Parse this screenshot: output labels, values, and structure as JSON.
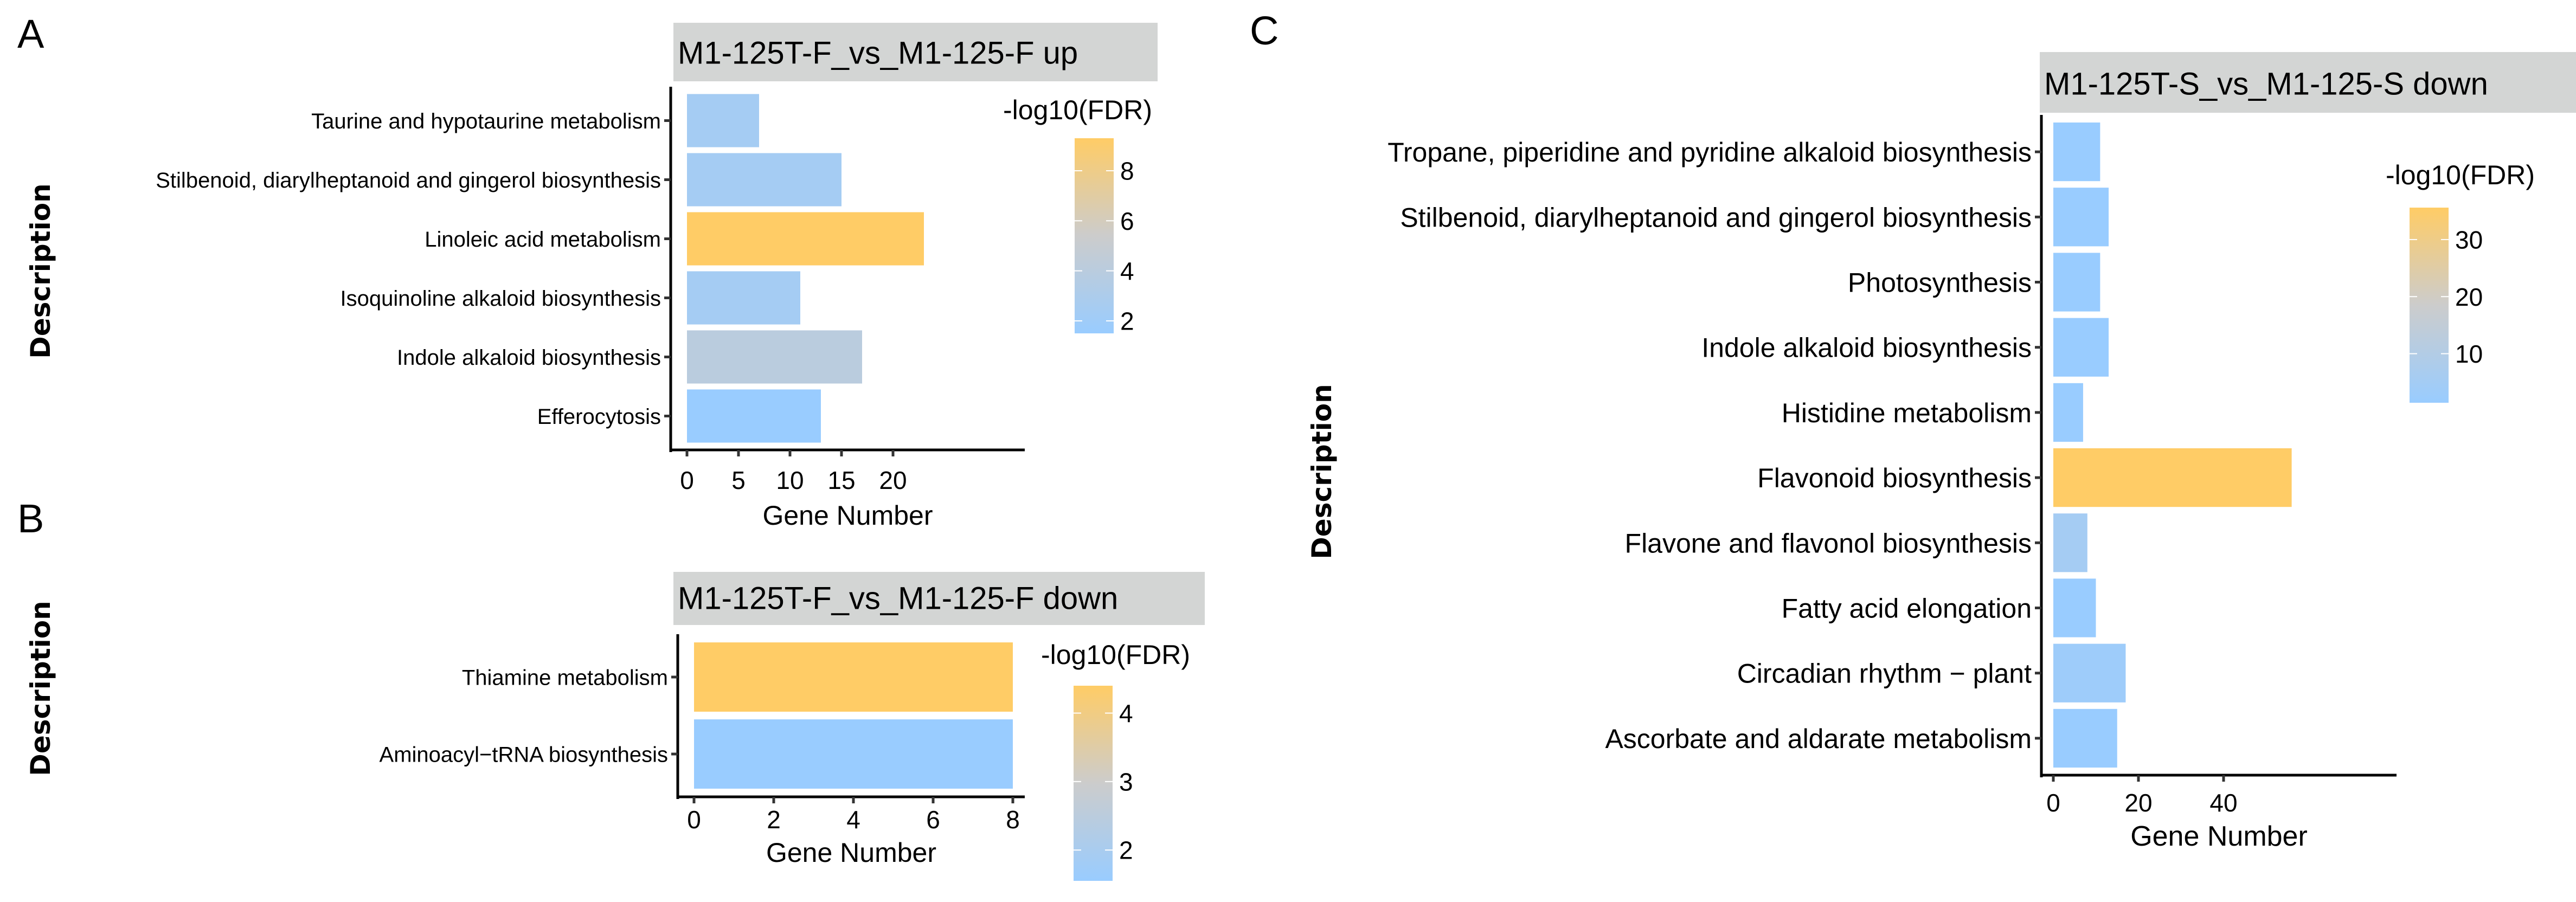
{
  "figure": {
    "panels": [
      "A",
      "B",
      "C"
    ]
  },
  "colors": {
    "low": "#99CCFF",
    "mid": "#CCCCCC",
    "high": "#FFCC66",
    "strip_bg": "#D3D5D4",
    "axis": "#000000",
    "tick": "#333333"
  },
  "chart_data": [
    {
      "panel": "A",
      "type": "bar",
      "orientation": "horizontal",
      "title": "M1-125T-F_vs_M1-125-F up",
      "xlabel": "Gene Number",
      "ylabel": "Description",
      "categories": [
        "Taurine and hypotaurine metabolism",
        "Stilbenoid, diarylheptanoid and gingerol biosynthesis",
        "Linoleic acid metabolism",
        "Isoquinoline alkaloid biosynthesis",
        "Indole alkaloid biosynthesis",
        "Efferocytosis"
      ],
      "values": [
        7,
        15,
        23,
        11,
        17,
        13
      ],
      "color_values": [
        2.4,
        2.4,
        9.3,
        2.4,
        4.0,
        1.5
      ],
      "color_label": "-log10(FDR)",
      "xlim": [
        0,
        24
      ],
      "xticks": [
        0,
        5,
        10,
        15,
        20
      ],
      "color_range": [
        1.5,
        9.3
      ],
      "color_ticks": [
        2,
        4,
        6,
        8
      ],
      "grid": false,
      "legend": "right"
    },
    {
      "panel": "B",
      "type": "bar",
      "orientation": "horizontal",
      "title": "M1-125T-F_vs_M1-125-F down",
      "xlabel": "Gene Number",
      "ylabel": "Description",
      "categories": [
        "Thiamine metabolism",
        "Aminoacyl−tRNA biosynthesis"
      ],
      "values": [
        8,
        8
      ],
      "color_values": [
        4.4,
        1.55
      ],
      "color_label": "-log10(FDR)",
      "xlim": [
        0,
        8.2
      ],
      "xticks": [
        0,
        2,
        4,
        6,
        8
      ],
      "color_range": [
        1.55,
        4.4
      ],
      "color_ticks": [
        2,
        3,
        4
      ],
      "grid": false,
      "legend": "right"
    },
    {
      "panel": "C",
      "type": "bar",
      "orientation": "horizontal",
      "title": "M1-125T-S_vs_M1-125-S down",
      "xlabel": "Gene Number",
      "ylabel": "Description",
      "categories": [
        "Tropane, piperidine and pyridine alkaloid biosynthesis",
        "Stilbenoid, diarylheptanoid and gingerol biosynthesis",
        "Photosynthesis",
        "Indole alkaloid biosynthesis",
        "Histidine metabolism",
        "Flavonoid biosynthesis",
        "Flavone and flavonol biosynthesis",
        "Fatty acid elongation",
        "Circadian rhythm − plant",
        "Ascorbate and aldarate metabolism"
      ],
      "values": [
        11,
        13,
        11,
        13,
        7,
        56,
        8,
        10,
        17,
        15
      ],
      "color_values": [
        1.4,
        1.4,
        1.4,
        1.4,
        1.4,
        35.6,
        5.5,
        1.4,
        3.0,
        1.5
      ],
      "color_label": "-log10(FDR)",
      "xlim": [
        0,
        59
      ],
      "xticks": [
        0,
        20,
        40
      ],
      "color_range": [
        1.4,
        35.6
      ],
      "color_ticks": [
        10,
        20,
        30
      ],
      "grid": false,
      "legend": "right"
    }
  ]
}
